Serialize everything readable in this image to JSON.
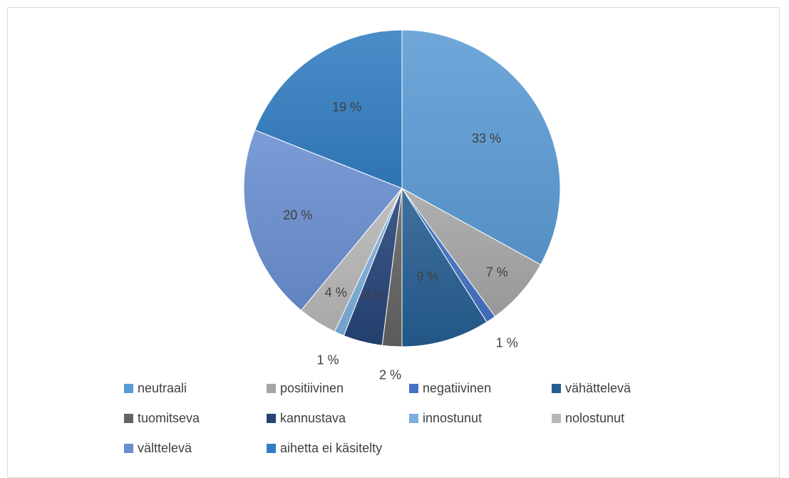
{
  "chart_data": {
    "type": "pie",
    "title": "",
    "legend_position": "bottom",
    "categories": [
      "neutraali",
      "positiivinen",
      "negatiivinen",
      "vähättelevä",
      "tuomitseva",
      "kannustava",
      "innostunut",
      "nolostunut",
      "välttelevä",
      "aihetta ei käsitelty"
    ],
    "values": [
      33,
      7,
      1,
      9,
      2,
      4,
      1,
      4,
      20,
      19
    ],
    "labels": [
      "33 %",
      "7 %",
      "1 %",
      "9 %",
      "2 %",
      "4 %",
      "1 %",
      "4 %",
      "20 %",
      "19 %"
    ],
    "colors": [
      "#5b9bd5",
      "#a5a5a5",
      "#4472c4",
      "#255e91",
      "#636363",
      "#264478",
      "#7cafdd",
      "#b7b7b7",
      "#698ed0",
      "#327dc2"
    ]
  }
}
